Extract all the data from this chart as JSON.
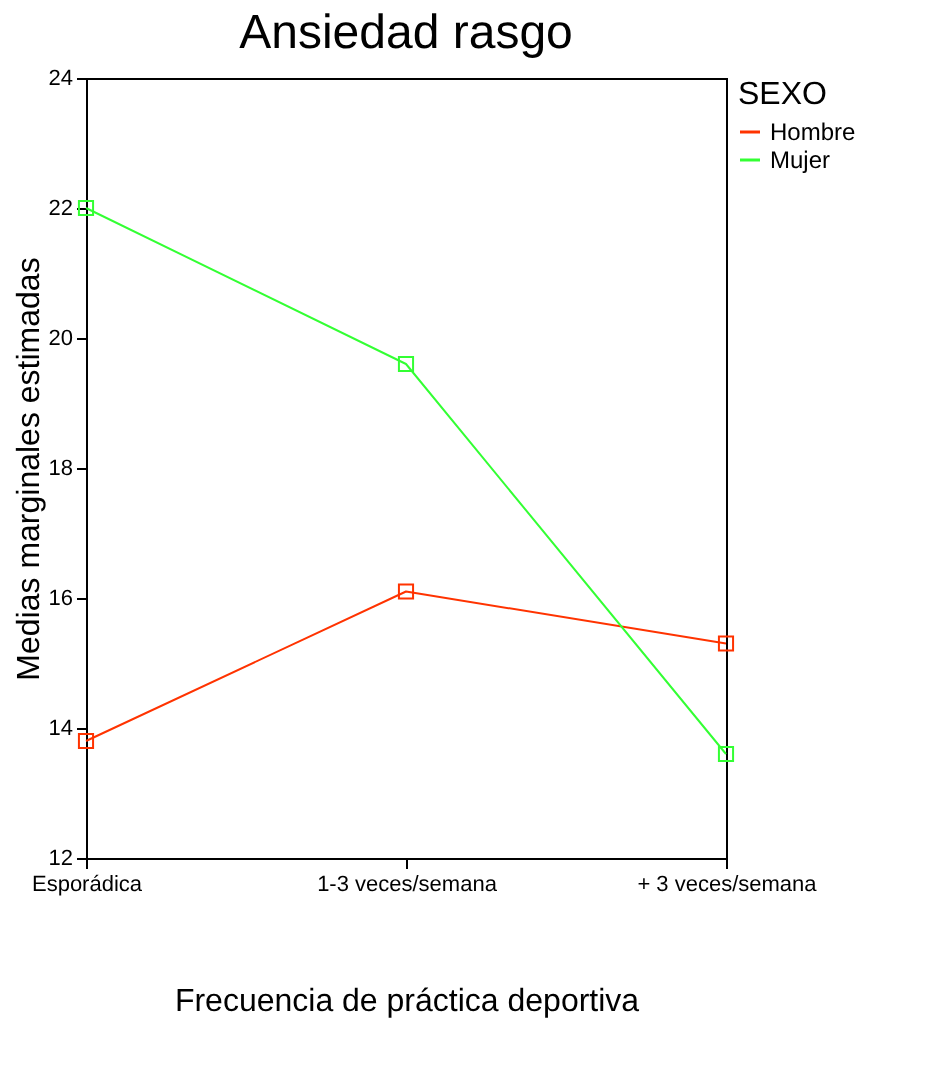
{
  "chart_data": {
    "type": "line",
    "title": "Ansiedad rasgo",
    "xlabel": "Frecuencia de práctica deportiva",
    "ylabel": "Medias marginales estimadas",
    "legend_title": "SEXO",
    "categories": [
      "Esporádica",
      "1-3 veces/semana",
      "+ 3 veces/semana"
    ],
    "series": [
      {
        "name": "Hombre",
        "color": "#ff3300",
        "values": [
          13.8,
          16.1,
          15.3
        ]
      },
      {
        "name": "Mujer",
        "color": "#33ff33",
        "values": [
          22.0,
          19.6,
          13.6
        ]
      }
    ],
    "ylim": [
      12,
      24
    ],
    "yticks": [
      12,
      14,
      16,
      18,
      20,
      22,
      24
    ],
    "grid": false,
    "legend": "right",
    "marker": "square",
    "line_style": "solid"
  }
}
